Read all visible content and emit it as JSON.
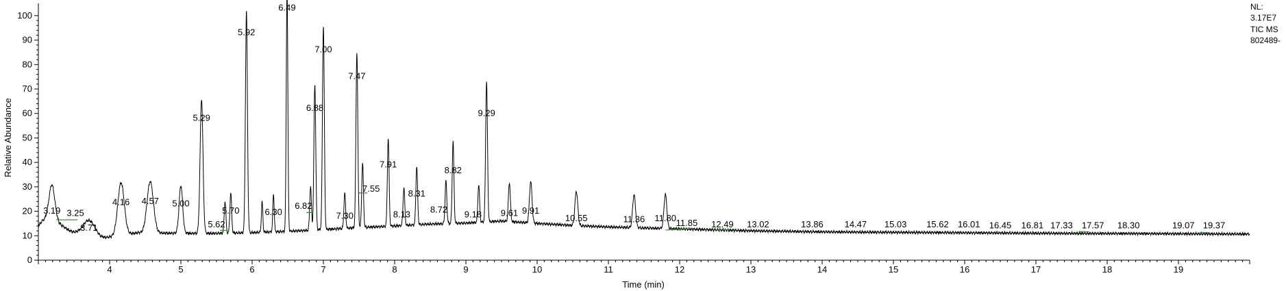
{
  "info": {
    "lines": [
      "NL:",
      "3.17E7",
      "TIC  MS",
      "802489-"
    ]
  },
  "colors": {
    "trace": "#000000",
    "axis": "#000000",
    "integration": "#2e8b2e"
  },
  "chart_data": {
    "type": "line",
    "title": "",
    "xlabel": "Time (min)",
    "ylabel": "Relative Abundance",
    "xlim": [
      3.0,
      20.0
    ],
    "ylim": [
      0,
      105
    ],
    "grid": false,
    "xticks": [
      4,
      5,
      6,
      7,
      8,
      9,
      10,
      11,
      12,
      13,
      14,
      15,
      16,
      17,
      18,
      19
    ],
    "yticks": [
      0,
      10,
      20,
      30,
      40,
      50,
      60,
      70,
      80,
      90,
      100
    ],
    "baseline": [
      [
        3.0,
        14.0
      ],
      [
        3.05,
        16.0
      ],
      [
        3.12,
        17.0
      ],
      [
        3.25,
        15.8
      ],
      [
        3.45,
        11.8
      ],
      [
        3.6,
        9.8
      ],
      [
        3.85,
        8.6
      ],
      [
        4.1,
        10.0
      ],
      [
        4.4,
        11.2
      ],
      [
        5.0,
        11.0
      ],
      [
        5.5,
        11.0
      ],
      [
        6.0,
        11.3
      ],
      [
        6.5,
        11.8
      ],
      [
        7.0,
        12.5
      ],
      [
        7.5,
        13.3
      ],
      [
        8.0,
        14.0
      ],
      [
        8.5,
        14.8
      ],
      [
        9.0,
        15.2
      ],
      [
        9.5,
        16.0
      ],
      [
        10.0,
        15.0
      ],
      [
        10.5,
        14.2
      ],
      [
        11.0,
        13.6
      ],
      [
        12.0,
        12.8
      ],
      [
        13.0,
        12.0
      ],
      [
        14.0,
        11.6
      ],
      [
        16.0,
        11.2
      ],
      [
        18.0,
        10.9
      ],
      [
        20.0,
        10.7
      ]
    ],
    "peaks": [
      {
        "t": 3.19,
        "h": 14.5,
        "w": 0.04
      },
      {
        "t": 3.71,
        "h": 7.0,
        "w": 0.09
      },
      {
        "t": 4.16,
        "h": 21.5,
        "w": 0.045
      },
      {
        "t": 4.57,
        "h": 21.0,
        "w": 0.045
      },
      {
        "t": 5.0,
        "h": 19.5,
        "w": 0.025
      },
      {
        "t": 5.29,
        "h": 55.0,
        "w": 0.02
      },
      {
        "t": 5.62,
        "h": 13.0,
        "w": 0.012
      },
      {
        "t": 5.7,
        "h": 16.5,
        "w": 0.012
      },
      {
        "t": 5.92,
        "h": 90.5,
        "w": 0.014
      },
      {
        "t": 6.14,
        "h": 12.5,
        "w": 0.01
      },
      {
        "t": 6.3,
        "h": 15.5,
        "w": 0.01
      },
      {
        "t": 6.49,
        "h": 100.0,
        "w": 0.011
      },
      {
        "t": 6.82,
        "h": 18.0,
        "w": 0.012
      },
      {
        "t": 6.88,
        "h": 59.5,
        "w": 0.013
      },
      {
        "t": 7.0,
        "h": 83.5,
        "w": 0.013
      },
      {
        "t": 7.3,
        "h": 14.5,
        "w": 0.012
      },
      {
        "t": 7.47,
        "h": 72.0,
        "w": 0.013
      },
      {
        "t": 7.55,
        "h": 26.5,
        "w": 0.012
      },
      {
        "t": 7.91,
        "h": 36.0,
        "w": 0.012
      },
      {
        "t": 8.13,
        "h": 15.5,
        "w": 0.012
      },
      {
        "t": 8.31,
        "h": 24.0,
        "w": 0.012
      },
      {
        "t": 8.72,
        "h": 17.5,
        "w": 0.012
      },
      {
        "t": 8.82,
        "h": 33.5,
        "w": 0.012
      },
      {
        "t": 9.18,
        "h": 15.5,
        "w": 0.012
      },
      {
        "t": 9.29,
        "h": 57.5,
        "w": 0.013
      },
      {
        "t": 9.61,
        "h": 16.0,
        "w": 0.014
      },
      {
        "t": 9.91,
        "h": 17.0,
        "w": 0.018
      },
      {
        "t": 10.55,
        "h": 14.0,
        "w": 0.02
      },
      {
        "t": 11.36,
        "h": 13.5,
        "w": 0.02
      },
      {
        "t": 11.8,
        "h": 14.0,
        "w": 0.02
      }
    ],
    "labels": [
      {
        "text": "3.19",
        "t": 3.19,
        "y": 19
      },
      {
        "text": "3.25",
        "t": 3.52,
        "y": 18
      },
      {
        "text": "3.71",
        "t": 3.71,
        "y": 12
      },
      {
        "text": "4.16",
        "t": 4.16,
        "y": 22.5
      },
      {
        "text": "4.57",
        "t": 4.57,
        "y": 23
      },
      {
        "text": "5.00",
        "t": 5.0,
        "y": 22
      },
      {
        "text": "5.29",
        "t": 5.29,
        "y": 57
      },
      {
        "text": "5.62",
        "t": 5.5,
        "y": 13.5
      },
      {
        "text": "5.70",
        "t": 5.7,
        "y": 19
      },
      {
        "text": "5.92",
        "t": 5.92,
        "y": 92
      },
      {
        "text": "6.30",
        "t": 6.3,
        "y": 18.5
      },
      {
        "text": "6.49",
        "t": 6.49,
        "y": 102
      },
      {
        "text": "6.82",
        "t": 6.72,
        "y": 21
      },
      {
        "text": "6.88",
        "t": 6.88,
        "y": 61
      },
      {
        "text": "7.00",
        "t": 7.0,
        "y": 85
      },
      {
        "text": "7.30",
        "t": 7.3,
        "y": 17
      },
      {
        "text": "7.47",
        "t": 7.47,
        "y": 74
      },
      {
        "text": "7.55",
        "t": 7.67,
        "y": 28
      },
      {
        "text": "7.91",
        "t": 7.91,
        "y": 38
      },
      {
        "text": "8.13",
        "t": 8.1,
        "y": 17.5
      },
      {
        "text": "8.31",
        "t": 8.31,
        "y": 26
      },
      {
        "text": "8.72",
        "t": 8.62,
        "y": 19.5
      },
      {
        "text": "8.82",
        "t": 8.82,
        "y": 35.5
      },
      {
        "text": "9.18",
        "t": 9.1,
        "y": 17.5
      },
      {
        "text": "9.29",
        "t": 9.29,
        "y": 59
      },
      {
        "text": "9.61",
        "t": 9.61,
        "y": 18
      },
      {
        "text": "9.91",
        "t": 9.91,
        "y": 19
      },
      {
        "text": "10.55",
        "t": 10.55,
        "y": 16
      },
      {
        "text": "11.36",
        "t": 11.36,
        "y": 15.5
      },
      {
        "text": "11.80",
        "t": 11.8,
        "y": 16
      },
      {
        "text": "11.85",
        "t": 12.1,
        "y": 14
      },
      {
        "text": "12.49",
        "t": 12.6,
        "y": 13.5
      },
      {
        "text": "13.02",
        "t": 13.1,
        "y": 13.5
      },
      {
        "text": "13.86",
        "t": 13.86,
        "y": 13.5
      },
      {
        "text": "14.47",
        "t": 14.47,
        "y": 13.5
      },
      {
        "text": "15.03",
        "t": 15.03,
        "y": 13.5
      },
      {
        "text": "15.62",
        "t": 15.62,
        "y": 13.5
      },
      {
        "text": "16.01",
        "t": 16.06,
        "y": 13.5
      },
      {
        "text": "16.45",
        "t": 16.5,
        "y": 13
      },
      {
        "text": "16.81",
        "t": 16.95,
        "y": 13
      },
      {
        "text": "17.33",
        "t": 17.36,
        "y": 13
      },
      {
        "text": "17.57",
        "t": 17.8,
        "y": 13
      },
      {
        "text": "18.30",
        "t": 18.3,
        "y": 13
      },
      {
        "text": "19.07",
        "t": 19.07,
        "y": 13
      },
      {
        "text": "19.37",
        "t": 19.5,
        "y": 13
      }
    ],
    "integrations": [
      [
        3.25,
        3.55,
        16.5,
        16.5
      ],
      [
        5.55,
        5.65,
        12.2,
        12.2
      ],
      [
        6.76,
        6.86,
        19.5,
        19.5
      ],
      [
        7.5,
        7.62,
        27.5,
        27.5
      ],
      [
        11.8,
        12.2,
        12.3,
        13.0
      ],
      [
        12.45,
        12.7,
        12.3,
        12.5
      ],
      [
        16.42,
        16.5,
        11.5,
        11.5
      ],
      [
        17.6,
        17.75,
        11.7,
        11.6
      ],
      [
        19.3,
        19.42,
        11.3,
        11.3
      ]
    ]
  }
}
